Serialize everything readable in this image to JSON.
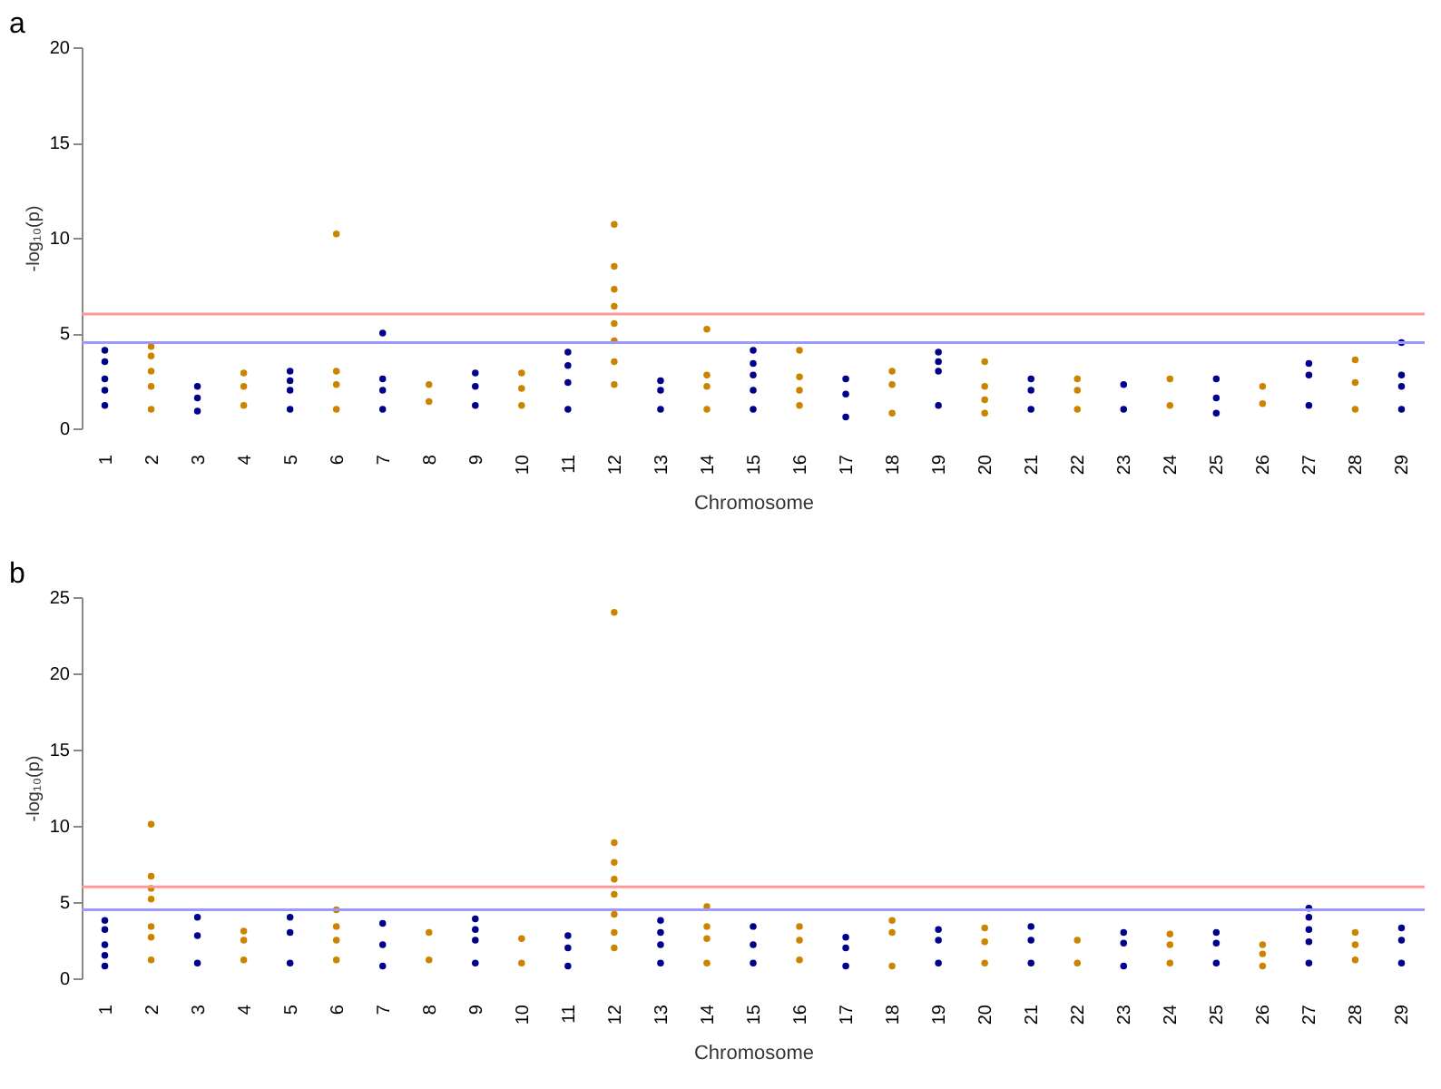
{
  "chart_data": [
    {
      "type": "scatter",
      "title": "a",
      "xlabel": "Chromosome",
      "ylabel": "-log₁₀(p)",
      "marker": "circle",
      "ylim": [
        0,
        20
      ],
      "yticks": [
        0,
        5,
        10,
        15,
        20
      ],
      "categories": [
        "1",
        "2",
        "3",
        "4",
        "5",
        "6",
        "7",
        "8",
        "9",
        "10",
        "11",
        "12",
        "13",
        "14",
        "15",
        "16",
        "17",
        "18",
        "19",
        "20",
        "21",
        "22",
        "23",
        "24",
        "25",
        "26",
        "27",
        "28",
        "29"
      ],
      "ref_lines": [
        {
          "axis": "y",
          "value": 6,
          "color": "#ff9999"
        },
        {
          "axis": "y",
          "value": 4.5,
          "color": "#9999ff"
        }
      ],
      "series": [
        {
          "color": "#00008b",
          "x": [
            "1",
            "1",
            "1",
            "1",
            "1",
            "3",
            "3",
            "3",
            "5",
            "5",
            "5",
            "5",
            "7",
            "7",
            "7",
            "7",
            "9",
            "9",
            "9",
            "11",
            "11",
            "11",
            "11",
            "13",
            "13",
            "13",
            "15",
            "15",
            "15",
            "15",
            "15",
            "17",
            "17",
            "17",
            "19",
            "19",
            "19",
            "19",
            "21",
            "21",
            "21",
            "23",
            "23",
            "25",
            "25",
            "25",
            "27",
            "27",
            "27",
            "29",
            "29",
            "29",
            "29"
          ],
          "values": [
            4.1,
            3.5,
            2.6,
            2.0,
            1.2,
            2.2,
            1.6,
            0.9,
            3.0,
            2.5,
            2.0,
            1.0,
            5.0,
            2.6,
            2.0,
            1.0,
            2.9,
            2.2,
            1.2,
            4.0,
            3.3,
            2.4,
            1.0,
            2.5,
            2.0,
            1.0,
            4.1,
            3.4,
            2.8,
            2.0,
            1.0,
            2.6,
            1.8,
            0.6,
            4.0,
            3.5,
            3.0,
            1.2,
            2.6,
            2.0,
            1.0,
            2.3,
            1.0,
            2.6,
            1.6,
            0.8,
            3.4,
            2.8,
            1.2,
            4.5,
            2.8,
            2.2,
            1.0
          ]
        },
        {
          "color": "#cc8400",
          "x": [
            "2",
            "2",
            "2",
            "2",
            "2",
            "4",
            "4",
            "4",
            "6",
            "6",
            "6",
            "6",
            "8",
            "8",
            "10",
            "10",
            "10",
            "12",
            "12",
            "12",
            "12",
            "12",
            "12",
            "12",
            "12",
            "14",
            "14",
            "14",
            "14",
            "16",
            "16",
            "16",
            "16",
            "18",
            "18",
            "18",
            "20",
            "20",
            "20",
            "20",
            "22",
            "22",
            "22",
            "24",
            "24",
            "26",
            "26",
            "28",
            "28",
            "28"
          ],
          "values": [
            4.3,
            3.8,
            3.0,
            2.2,
            1.0,
            2.9,
            2.2,
            1.2,
            10.2,
            3.0,
            2.3,
            1.0,
            2.3,
            1.4,
            2.9,
            2.1,
            1.2,
            10.7,
            8.5,
            7.3,
            6.4,
            5.5,
            4.6,
            3.5,
            2.3,
            5.2,
            2.8,
            2.2,
            1.0,
            4.1,
            2.7,
            2.0,
            1.2,
            3.0,
            2.3,
            0.8,
            3.5,
            2.2,
            1.5,
            0.8,
            2.6,
            2.0,
            1.0,
            2.6,
            1.2,
            2.2,
            1.3,
            3.6,
            2.4,
            1.0
          ]
        }
      ]
    },
    {
      "type": "scatter",
      "title": "b",
      "xlabel": "Chromosome",
      "ylabel": "-log₁₀(p)",
      "marker": "circle",
      "ylim": [
        0,
        25
      ],
      "yticks": [
        0,
        5,
        10,
        15,
        20,
        25
      ],
      "categories": [
        "1",
        "2",
        "3",
        "4",
        "5",
        "6",
        "7",
        "8",
        "9",
        "10",
        "11",
        "12",
        "13",
        "14",
        "15",
        "16",
        "17",
        "18",
        "19",
        "20",
        "21",
        "22",
        "23",
        "24",
        "25",
        "26",
        "27",
        "28",
        "29"
      ],
      "ref_lines": [
        {
          "axis": "y",
          "value": 6,
          "color": "#ff9999"
        },
        {
          "axis": "y",
          "value": 4.5,
          "color": "#9999ff"
        }
      ],
      "series": [
        {
          "color": "#00008b",
          "x": [
            "1",
            "1",
            "1",
            "1",
            "1",
            "3",
            "3",
            "3",
            "5",
            "5",
            "5",
            "7",
            "7",
            "7",
            "9",
            "9",
            "9",
            "9",
            "11",
            "11",
            "11",
            "13",
            "13",
            "13",
            "13",
            "15",
            "15",
            "15",
            "17",
            "17",
            "17",
            "19",
            "19",
            "19",
            "21",
            "21",
            "21",
            "23",
            "23",
            "23",
            "25",
            "25",
            "25",
            "27",
            "27",
            "27",
            "27",
            "27",
            "29",
            "29",
            "29"
          ],
          "values": [
            3.8,
            3.2,
            2.2,
            1.5,
            0.8,
            4.0,
            2.8,
            1.0,
            4.0,
            3.0,
            1.0,
            3.6,
            2.2,
            0.8,
            3.9,
            3.2,
            2.5,
            1.0,
            2.8,
            2.0,
            0.8,
            3.8,
            3.0,
            2.2,
            1.0,
            3.4,
            2.2,
            1.0,
            2.7,
            2.0,
            0.8,
            3.2,
            2.5,
            1.0,
            3.4,
            2.5,
            1.0,
            3.0,
            2.3,
            0.8,
            3.0,
            2.3,
            1.0,
            4.6,
            4.0,
            3.2,
            2.4,
            1.0,
            3.3,
            2.5,
            1.0
          ]
        },
        {
          "color": "#cc8400",
          "x": [
            "2",
            "2",
            "2",
            "2",
            "2",
            "2",
            "2",
            "4",
            "4",
            "4",
            "6",
            "6",
            "6",
            "6",
            "8",
            "8",
            "10",
            "10",
            "12",
            "12",
            "12",
            "12",
            "12",
            "12",
            "12",
            "12",
            "14",
            "14",
            "14",
            "14",
            "16",
            "16",
            "16",
            "18",
            "18",
            "18",
            "20",
            "20",
            "20",
            "22",
            "22",
            "24",
            "24",
            "24",
            "26",
            "26",
            "26",
            "28",
            "28",
            "28"
          ],
          "values": [
            10.1,
            6.7,
            5.9,
            5.2,
            3.4,
            2.7,
            1.2,
            3.1,
            2.5,
            1.2,
            4.5,
            3.4,
            2.5,
            1.2,
            3.0,
            1.2,
            2.6,
            1.0,
            24.0,
            8.9,
            7.6,
            6.5,
            5.5,
            4.2,
            3.0,
            2.0,
            4.7,
            3.4,
            2.6,
            1.0,
            3.4,
            2.5,
            1.2,
            3.8,
            3.0,
            0.8,
            3.3,
            2.4,
            1.0,
            2.5,
            1.0,
            2.9,
            2.2,
            1.0,
            2.2,
            1.6,
            0.8,
            3.0,
            2.2,
            1.2
          ]
        }
      ]
    }
  ]
}
